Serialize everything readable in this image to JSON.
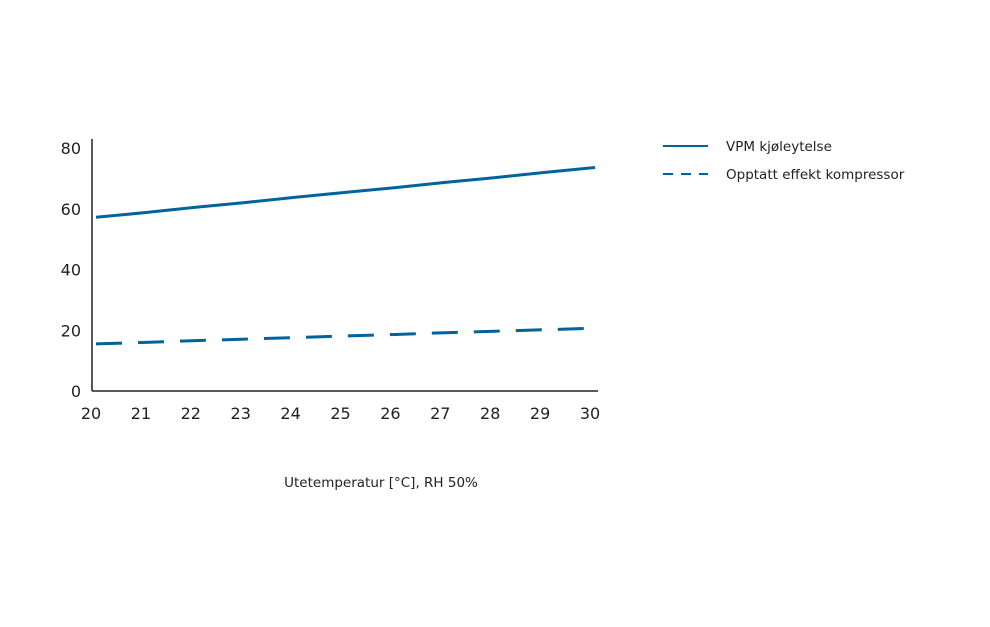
{
  "chart_data": {
    "type": "line",
    "title": "",
    "xlabel": "Utetemperatur [°C], RH 50%",
    "ylabel": "",
    "x": [
      20,
      21,
      22,
      23,
      24,
      25,
      26,
      27,
      28,
      29,
      30
    ],
    "x_ticks": [
      "20",
      "21",
      "22",
      "23",
      "24",
      "25",
      "26",
      "27",
      "28",
      "29",
      "30"
    ],
    "y_ticks": [
      "0",
      "20",
      "40",
      "60",
      "80"
    ],
    "xlim": [
      20,
      30
    ],
    "ylim": [
      0,
      83
    ],
    "grid": false,
    "legend_position": "right",
    "series": [
      {
        "name": "VPM kjøleytelse",
        "style": "solid",
        "color": "#00639c",
        "values": [
          57.2,
          58.8,
          60.5,
          62.1,
          63.8,
          65.4,
          67.0,
          68.7,
          70.3,
          72.0,
          73.6
        ]
      },
      {
        "name": "Opptatt effekt kompressor",
        "style": "dashed",
        "color": "#00639c",
        "values": [
          15.5,
          16.0,
          16.6,
          17.1,
          17.6,
          18.1,
          18.6,
          19.2,
          19.7,
          20.2,
          20.7
        ]
      }
    ]
  }
}
